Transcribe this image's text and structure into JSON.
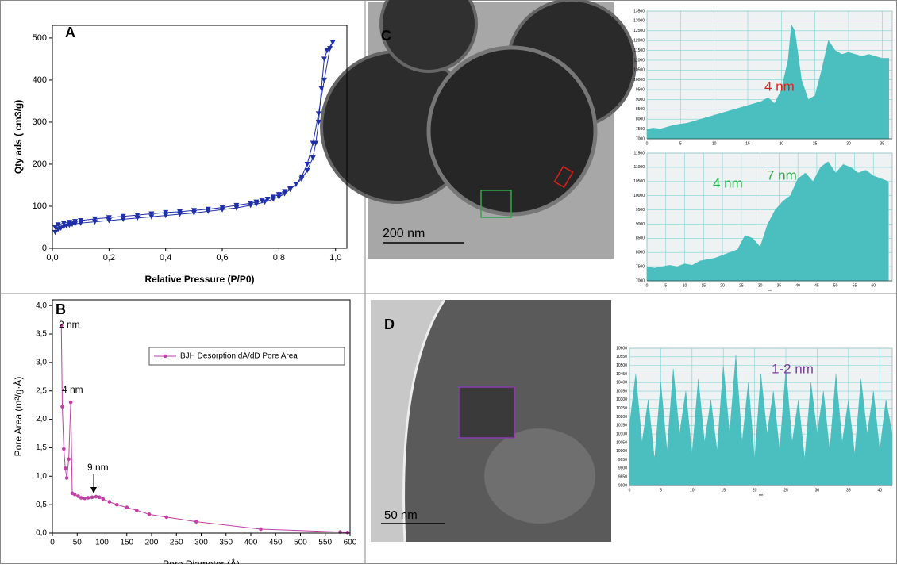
{
  "chart_data": [
    {
      "type": "line",
      "panel": "A",
      "xlabel": "Relative Pressure (P/P0)",
      "ylabel": "Qty ads ( cm3/g)",
      "xlim": [
        0,
        1.04
      ],
      "ylim": [
        0,
        530
      ],
      "xticks": [
        {
          "value": 0,
          "label": "0,0"
        },
        {
          "value": 0.2,
          "label": "0,2"
        },
        {
          "value": 0.4,
          "label": "0,4"
        },
        {
          "value": 0.6,
          "label": "0,6"
        },
        {
          "value": 0.8,
          "label": "0,8"
        },
        {
          "value": 1,
          "label": "1,0"
        }
      ],
      "yticks": [
        0,
        100,
        200,
        300,
        400,
        500
      ],
      "series": [
        {
          "color": "#1f2fa8",
          "marker": "triangle-down",
          "x": [
            0.01,
            0.02,
            0.03,
            0.04,
            0.05,
            0.06,
            0.07,
            0.08,
            0.1,
            0.15,
            0.2,
            0.25,
            0.3,
            0.35,
            0.4,
            0.45,
            0.5,
            0.55,
            0.6,
            0.65,
            0.7,
            0.72,
            0.75,
            0.78,
            0.8,
            0.82,
            0.84,
            0.86,
            0.88,
            0.9,
            0.92,
            0.94,
            0.96,
            0.98,
            0.99
          ],
          "values": [
            38,
            45,
            48,
            51,
            53,
            55,
            57,
            58,
            60,
            63,
            66,
            69,
            72,
            75,
            78,
            81,
            84,
            88,
            92,
            96,
            102,
            105,
            110,
            117,
            122,
            130,
            140,
            152,
            170,
            200,
            250,
            320,
            400,
            475,
            490
          ]
        },
        {
          "color": "#1f2fa8",
          "marker": "triangle-down",
          "x": [
            0.99,
            0.97,
            0.96,
            0.95,
            0.94,
            0.93,
            0.92,
            0.9,
            0.88,
            0.86,
            0.84,
            0.82,
            0.8,
            0.78,
            0.76,
            0.74,
            0.72,
            0.7,
            0.65,
            0.6,
            0.55,
            0.5,
            0.45,
            0.4,
            0.35,
            0.3,
            0.25,
            0.2,
            0.15,
            0.1,
            0.08,
            0.06,
            0.04,
            0.02,
            0.01
          ],
          "values": [
            490,
            470,
            450,
            380,
            300,
            250,
            215,
            185,
            165,
            152,
            142,
            135,
            128,
            122,
            117,
            113,
            110,
            107,
            102,
            97,
            93,
            90,
            87,
            85,
            82,
            79,
            76,
            73,
            70,
            66,
            64,
            62,
            60,
            56,
            50
          ]
        }
      ]
    },
    {
      "type": "line",
      "panel": "B",
      "xlabel": "Pore Diameter (Å)",
      "ylabel": "Pore Area (m²/g·Å)",
      "xlim": [
        0,
        600
      ],
      "ylim": [
        0,
        4.1
      ],
      "xticks": [
        0,
        50,
        100,
        150,
        200,
        250,
        300,
        350,
        400,
        450,
        500,
        550,
        600
      ],
      "yticks": [
        {
          "value": 0,
          "label": "0,0"
        },
        {
          "value": 0.5,
          "label": "0,5"
        },
        {
          "value": 1,
          "label": "1,0"
        },
        {
          "value": 1.5,
          "label": "1,5"
        },
        {
          "value": 2,
          "label": "2,0"
        },
        {
          "value": 2.5,
          "label": "2,5"
        },
        {
          "value": 3,
          "label": "3,0"
        },
        {
          "value": 3.5,
          "label": "3,5"
        },
        {
          "value": 4,
          "label": "4,0"
        }
      ],
      "legend": "upper right",
      "annotations": [
        "2 nm",
        "4 nm",
        "9 nm"
      ],
      "series": [
        {
          "name": "BJH Desorption dA/dD Pore Area",
          "color": "#c13fa6",
          "marker": "circle",
          "x": [
            18,
            20,
            23,
            26,
            29,
            33,
            37,
            40,
            45,
            52,
            58,
            65,
            72,
            80,
            88,
            95,
            102,
            115,
            130,
            150,
            170,
            195,
            230,
            290,
            420,
            580,
            595
          ],
          "values": [
            3.65,
            2.22,
            1.48,
            1.14,
            0.97,
            1.3,
            2.3,
            0.7,
            0.68,
            0.65,
            0.62,
            0.61,
            0.62,
            0.63,
            0.64,
            0.63,
            0.6,
            0.55,
            0.5,
            0.45,
            0.4,
            0.33,
            0.28,
            0.2,
            0.07,
            0.02,
            0.01
          ]
        }
      ]
    },
    {
      "type": "area",
      "xlim": [
        0,
        36.5
      ],
      "ylim": [
        7000,
        13500
      ],
      "xticks": [
        0,
        5,
        10,
        15,
        20,
        25,
        30,
        35
      ],
      "yticks": [
        7000,
        7500,
        8000,
        8500,
        9000,
        9500,
        10000,
        10500,
        11000,
        11500,
        12000,
        12500,
        13000,
        13500
      ],
      "annotations": [
        "4 nm"
      ],
      "annotation_color": "#e0201a",
      "series": [
        {
          "color": "#4bbfbf",
          "x": [
            0,
            1,
            2,
            3,
            4,
            5,
            6,
            7,
            8,
            9,
            10,
            11,
            12,
            13,
            14,
            15,
            16,
            17,
            18,
            19,
            20,
            21,
            21.5,
            22,
            23,
            24,
            25,
            26,
            27,
            28,
            29,
            30,
            31,
            32,
            33,
            34,
            35,
            36
          ],
          "values": [
            7500,
            7550,
            7500,
            7600,
            7700,
            7750,
            7800,
            7900,
            8000,
            8100,
            8200,
            8300,
            8400,
            8500,
            8600,
            8700,
            8800,
            8900,
            9100,
            8800,
            9500,
            11000,
            12800,
            12500,
            10000,
            9000,
            9200,
            10500,
            12000,
            11500,
            11300,
            11400,
            11300,
            11200,
            11300,
            11200,
            11100,
            11100
          ]
        }
      ]
    },
    {
      "type": "area",
      "xlabel": "nm",
      "xlim": [
        0,
        65
      ],
      "ylim": [
        7000,
        11500
      ],
      "xticks": [
        0,
        5,
        10,
        15,
        20,
        25,
        30,
        35,
        40,
        45,
        50,
        55,
        60
      ],
      "yticks": [
        7000,
        7500,
        8000,
        8500,
        9000,
        9500,
        10000,
        10500,
        11000,
        11500
      ],
      "annotations": [
        "4 nm",
        "7 nm"
      ],
      "annotation_color": "#2aa84a",
      "series": [
        {
          "color": "#4bbfbf",
          "x": [
            0,
            2,
            4,
            6,
            8,
            10,
            12,
            14,
            16,
            18,
            20,
            22,
            24,
            26,
            28,
            30,
            32,
            34,
            36,
            38,
            40,
            42,
            44,
            46,
            48,
            50,
            52,
            54,
            56,
            58,
            60,
            62,
            64
          ],
          "values": [
            7500,
            7450,
            7500,
            7550,
            7500,
            7600,
            7550,
            7700,
            7750,
            7800,
            7900,
            8000,
            8100,
            8600,
            8500,
            8200,
            9000,
            9500,
            9800,
            10000,
            10600,
            10800,
            10500,
            11000,
            11200,
            10800,
            11100,
            11000,
            10800,
            10900,
            10700,
            10600,
            10500
          ]
        }
      ]
    },
    {
      "type": "area",
      "xlabel": "nm",
      "xlim": [
        0,
        42
      ],
      "ylim": [
        9800,
        10600
      ],
      "xticks": [
        0,
        5,
        10,
        15,
        20,
        25,
        30,
        35,
        40
      ],
      "yticks": [
        9800,
        9850,
        9900,
        9950,
        10000,
        10050,
        10100,
        10150,
        10200,
        10250,
        10300,
        10350,
        10400,
        10450,
        10500,
        10550,
        10600
      ],
      "annotations": [
        "1-2 nm"
      ],
      "annotation_color": "#7a3d9c",
      "series": [
        {
          "color": "#4bbfbf",
          "x": [
            0,
            1,
            2,
            3,
            4,
            5,
            6,
            7,
            8,
            9,
            10,
            11,
            12,
            13,
            14,
            15,
            16,
            17,
            18,
            19,
            20,
            21,
            22,
            23,
            24,
            25,
            26,
            27,
            28,
            29,
            30,
            31,
            32,
            33,
            34,
            35,
            36,
            37,
            38,
            39,
            40,
            41,
            42
          ],
          "values": [
            10150,
            10450,
            10050,
            10300,
            9950,
            10400,
            10000,
            10480,
            10100,
            10350,
            9980,
            10420,
            10050,
            10300,
            10000,
            10500,
            10100,
            10560,
            10050,
            10400,
            9950,
            10450,
            10100,
            10350,
            10000,
            10480,
            10050,
            10300,
            9950,
            10400,
            10100,
            10350,
            10000,
            10450,
            10050,
            10300,
            9980,
            10420,
            10100,
            10350,
            10000,
            10300,
            10100
          ]
        }
      ]
    }
  ],
  "images": [
    {
      "panel": "C",
      "scale_bar": "200 nm"
    },
    {
      "panel": "D",
      "scale_bar": "50 nm"
    }
  ]
}
